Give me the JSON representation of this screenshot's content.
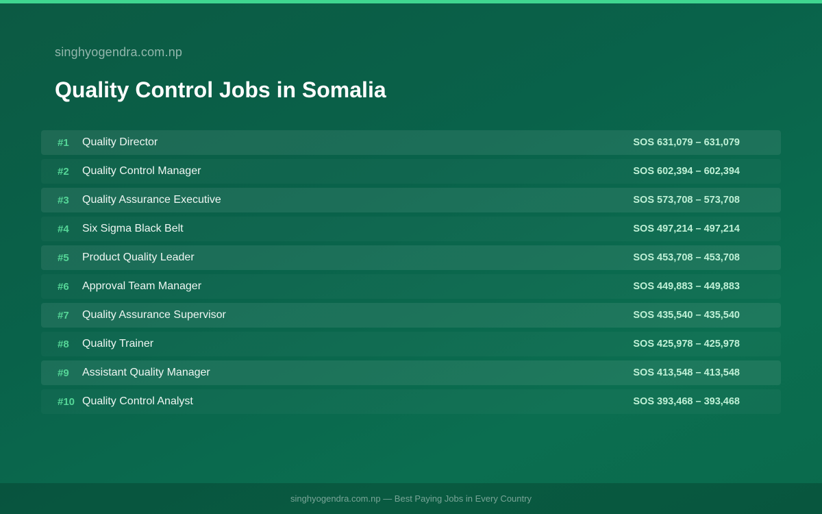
{
  "header": {
    "site_name": "singhyogendra.com.np",
    "title": "Quality Control Jobs in Somalia"
  },
  "jobs": [
    {
      "rank": "#1",
      "title": "Quality Director",
      "salary": "SOS 631,079 – 631,079"
    },
    {
      "rank": "#2",
      "title": "Quality Control Manager",
      "salary": "SOS 602,394 – 602,394"
    },
    {
      "rank": "#3",
      "title": "Quality Assurance Executive",
      "salary": "SOS 573,708 – 573,708"
    },
    {
      "rank": "#4",
      "title": "Six Sigma Black Belt",
      "salary": "SOS 497,214 – 497,214"
    },
    {
      "rank": "#5",
      "title": "Product Quality Leader",
      "salary": "SOS 453,708 – 453,708"
    },
    {
      "rank": "#6",
      "title": "Approval Team Manager",
      "salary": "SOS 449,883 – 449,883"
    },
    {
      "rank": "#7",
      "title": "Quality Assurance Supervisor",
      "salary": "SOS 435,540 – 435,540"
    },
    {
      "rank": "#8",
      "title": "Quality Trainer",
      "salary": "SOS 425,978 – 425,978"
    },
    {
      "rank": "#9",
      "title": "Assistant Quality Manager",
      "salary": "SOS 413,548 – 413,548"
    },
    {
      "rank": "#10",
      "title": "Quality Control Analyst",
      "salary": "SOS 393,468 – 393,468"
    }
  ],
  "footer": {
    "text": "singhyogendra.com.np — Best Paying Jobs in Every Country"
  },
  "colors": {
    "accent": "#3fd690",
    "rank": "#55d697",
    "background": "#09624a"
  }
}
